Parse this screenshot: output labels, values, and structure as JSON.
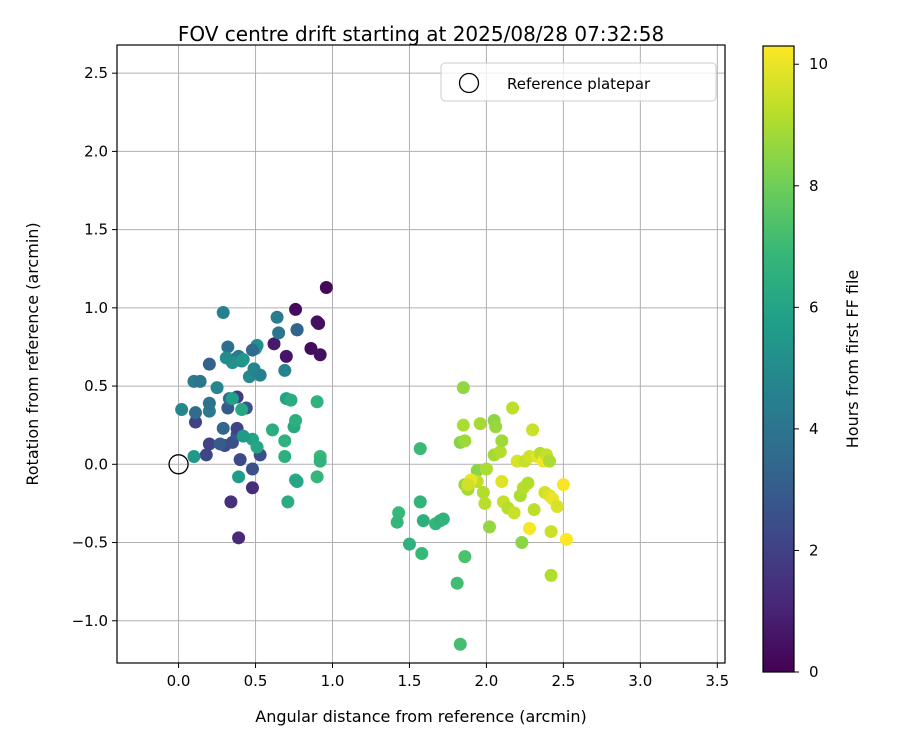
{
  "chart_data": {
    "type": "scatter",
    "title": "FOV centre drift starting at 2025/08/28 07:32:58",
    "xlabel": "Angular distance from reference (arcmin)",
    "ylabel": "Rotation from reference (arcmin)",
    "xlim": [
      -0.4,
      3.55
    ],
    "ylim": [
      -1.27,
      2.68
    ],
    "xticks": [
      0.0,
      0.5,
      1.0,
      1.5,
      2.0,
      2.5,
      3.0,
      3.5
    ],
    "yticks": [
      -1.0,
      -0.5,
      0.0,
      0.5,
      1.0,
      1.5,
      2.0,
      2.5
    ],
    "xtick_labels": [
      "0.0",
      "0.5",
      "1.0",
      "1.5",
      "2.0",
      "2.5",
      "3.0",
      "3.5"
    ],
    "ytick_labels": [
      "−1.0",
      "−0.5",
      "0.0",
      "0.5",
      "1.0",
      "1.5",
      "2.0",
      "2.5"
    ],
    "grid": true,
    "legend": {
      "placement": "top-right",
      "entries": [
        "Reference platepar"
      ]
    },
    "reference_point": {
      "x": 0.0,
      "y": 0.0
    },
    "colorbar": {
      "label": "Hours from first FF file",
      "min": 0,
      "max": 10.3,
      "ticks": [
        0,
        2,
        4,
        6,
        8,
        10
      ],
      "tick_labels": [
        "0",
        "2",
        "4",
        "6",
        "8",
        "10"
      ],
      "colormap": "viridis"
    },
    "points": [
      {
        "x": 0.96,
        "y": 1.13,
        "c": 0.2
      },
      {
        "x": 0.76,
        "y": 0.99,
        "c": 0.3
      },
      {
        "x": 0.9,
        "y": 0.91,
        "c": 0.5
      },
      {
        "x": 0.91,
        "y": 0.9,
        "c": 0.4
      },
      {
        "x": 0.77,
        "y": 0.86,
        "c": 1.0
      },
      {
        "x": 0.62,
        "y": 0.77,
        "c": 0.7
      },
      {
        "x": 0.86,
        "y": 0.74,
        "c": 0.3
      },
      {
        "x": 0.92,
        "y": 0.7,
        "c": 0.4
      },
      {
        "x": 0.7,
        "y": 0.69,
        "c": 0.6
      },
      {
        "x": 0.39,
        "y": -0.47,
        "c": 1.2
      },
      {
        "x": 0.34,
        "y": -0.24,
        "c": 1.4
      },
      {
        "x": 0.48,
        "y": -0.15,
        "c": 1.3
      },
      {
        "x": 0.48,
        "y": -0.03,
        "c": 2.6
      },
      {
        "x": 0.4,
        "y": 0.03,
        "c": 2.3
      },
      {
        "x": 0.53,
        "y": 0.06,
        "c": 2.5
      },
      {
        "x": 0.18,
        "y": 0.06,
        "c": 2.2
      },
      {
        "x": 0.2,
        "y": 0.13,
        "c": 2.0
      },
      {
        "x": 0.3,
        "y": 0.12,
        "c": 2.4
      },
      {
        "x": 0.35,
        "y": 0.14,
        "c": 2.5
      },
      {
        "x": 0.27,
        "y": 0.13,
        "c": 3.0
      },
      {
        "x": 0.38,
        "y": 0.19,
        "c": 2.8
      },
      {
        "x": 0.11,
        "y": 0.27,
        "c": 2.0
      },
      {
        "x": 0.29,
        "y": 0.23,
        "c": 3.4
      },
      {
        "x": 0.38,
        "y": 0.23,
        "c": 2.1
      },
      {
        "x": 0.32,
        "y": 0.36,
        "c": 2.9
      },
      {
        "x": 0.2,
        "y": 0.34,
        "c": 4.2
      },
      {
        "x": 0.11,
        "y": 0.33,
        "c": 3.6
      },
      {
        "x": 0.2,
        "y": 0.39,
        "c": 3.9
      },
      {
        "x": 0.33,
        "y": 0.42,
        "c": 3.7
      },
      {
        "x": 0.38,
        "y": 0.43,
        "c": 1.8
      },
      {
        "x": 0.44,
        "y": 0.36,
        "c": 2.7
      },
      {
        "x": 0.1,
        "y": 0.53,
        "c": 4.3
      },
      {
        "x": 0.14,
        "y": 0.53,
        "c": 4.0
      },
      {
        "x": 0.25,
        "y": 0.49,
        "c": 4.8
      },
      {
        "x": 0.2,
        "y": 0.64,
        "c": 3.2
      },
      {
        "x": 0.32,
        "y": 0.75,
        "c": 3.8
      },
      {
        "x": 0.29,
        "y": 0.97,
        "c": 4.5
      },
      {
        "x": 0.39,
        "y": 0.69,
        "c": 4.1
      },
      {
        "x": 0.41,
        "y": 0.66,
        "c": 4.6
      },
      {
        "x": 0.36,
        "y": 0.67,
        "c": 4.4
      },
      {
        "x": 0.35,
        "y": 0.65,
        "c": 5.2
      },
      {
        "x": 0.31,
        "y": 0.68,
        "c": 5.0
      },
      {
        "x": 0.42,
        "y": 0.67,
        "c": 5.4
      },
      {
        "x": 0.46,
        "y": 0.56,
        "c": 4.9
      },
      {
        "x": 0.49,
        "y": 0.61,
        "c": 4.7
      },
      {
        "x": 0.53,
        "y": 0.57,
        "c": 4.5
      },
      {
        "x": 0.5,
        "y": 0.74,
        "c": 5.3
      },
      {
        "x": 0.51,
        "y": 0.76,
        "c": 5.1
      },
      {
        "x": 0.48,
        "y": 0.73,
        "c": 3.5
      },
      {
        "x": 0.64,
        "y": 0.94,
        "c": 4.3
      },
      {
        "x": 0.65,
        "y": 0.84,
        "c": 4.0
      },
      {
        "x": 0.77,
        "y": 0.86,
        "c": 3.3
      },
      {
        "x": 0.69,
        "y": 0.6,
        "c": 4.6
      },
      {
        "x": 0.02,
        "y": 0.35,
        "c": 4.8
      },
      {
        "x": 0.1,
        "y": 0.05,
        "c": 5.5
      },
      {
        "x": 0.35,
        "y": 0.42,
        "c": 5.8
      },
      {
        "x": 0.41,
        "y": 0.35,
        "c": 6.2
      },
      {
        "x": 0.48,
        "y": 0.16,
        "c": 5.9
      },
      {
        "x": 0.42,
        "y": 0.18,
        "c": 5.6
      },
      {
        "x": 0.51,
        "y": 0.11,
        "c": 6.1
      },
      {
        "x": 0.39,
        "y": -0.08,
        "c": 5.7
      },
      {
        "x": 0.61,
        "y": 0.22,
        "c": 6.4
      },
      {
        "x": 0.69,
        "y": 0.15,
        "c": 6.6
      },
      {
        "x": 0.69,
        "y": 0.05,
        "c": 6.5
      },
      {
        "x": 0.7,
        "y": 0.42,
        "c": 6.0
      },
      {
        "x": 0.73,
        "y": 0.41,
        "c": 6.3
      },
      {
        "x": 0.75,
        "y": 0.24,
        "c": 6.2
      },
      {
        "x": 0.76,
        "y": 0.28,
        "c": 6.5
      },
      {
        "x": 0.71,
        "y": -0.24,
        "c": 6.4
      },
      {
        "x": 0.76,
        "y": -0.1,
        "c": 6.3
      },
      {
        "x": 0.9,
        "y": -0.08,
        "c": 6.8
      },
      {
        "x": 0.9,
        "y": 0.4,
        "c": 6.6
      },
      {
        "x": 0.92,
        "y": 0.05,
        "c": 6.9
      },
      {
        "x": 0.92,
        "y": 0.02,
        "c": 6.7
      },
      {
        "x": 0.77,
        "y": -0.11,
        "c": 6.1
      },
      {
        "x": 1.43,
        "y": -0.31,
        "c": 6.9
      },
      {
        "x": 1.42,
        "y": -0.37,
        "c": 6.8
      },
      {
        "x": 1.5,
        "y": -0.51,
        "c": 6.6
      },
      {
        "x": 1.57,
        "y": -0.24,
        "c": 6.7
      },
      {
        "x": 1.58,
        "y": -0.57,
        "c": 6.9
      },
      {
        "x": 1.59,
        "y": -0.36,
        "c": 6.5
      },
      {
        "x": 1.57,
        "y": 0.1,
        "c": 7.0
      },
      {
        "x": 1.67,
        "y": -0.38,
        "c": 6.8
      },
      {
        "x": 1.7,
        "y": -0.36,
        "c": 6.6
      },
      {
        "x": 1.72,
        "y": -0.35,
        "c": 6.7
      },
      {
        "x": 1.81,
        "y": -0.76,
        "c": 7.1
      },
      {
        "x": 1.86,
        "y": -0.59,
        "c": 7.3
      },
      {
        "x": 1.83,
        "y": -1.15,
        "c": 7.2
      },
      {
        "x": 1.85,
        "y": 0.49,
        "c": 8.6
      },
      {
        "x": 1.83,
        "y": 0.14,
        "c": 8.4
      },
      {
        "x": 1.85,
        "y": 0.25,
        "c": 9.0
      },
      {
        "x": 1.86,
        "y": 0.15,
        "c": 8.8
      },
      {
        "x": 1.86,
        "y": -0.13,
        "c": 8.7
      },
      {
        "x": 1.88,
        "y": -0.16,
        "c": 8.9
      },
      {
        "x": 1.94,
        "y": -0.04,
        "c": 8.5
      },
      {
        "x": 1.94,
        "y": -0.11,
        "c": 9.3
      },
      {
        "x": 1.96,
        "y": 0.26,
        "c": 8.9
      },
      {
        "x": 1.98,
        "y": -0.18,
        "c": 9.1
      },
      {
        "x": 1.99,
        "y": -0.25,
        "c": 9.2
      },
      {
        "x": 2.0,
        "y": -0.03,
        "c": 9.0
      },
      {
        "x": 2.02,
        "y": -0.4,
        "c": 8.6
      },
      {
        "x": 2.05,
        "y": 0.28,
        "c": 8.5
      },
      {
        "x": 2.06,
        "y": 0.24,
        "c": 8.7
      },
      {
        "x": 2.05,
        "y": 0.06,
        "c": 8.9
      },
      {
        "x": 2.09,
        "y": 0.08,
        "c": 9.1
      },
      {
        "x": 2.1,
        "y": 0.15,
        "c": 8.8
      },
      {
        "x": 2.1,
        "y": -0.11,
        "c": 9.8
      },
      {
        "x": 2.11,
        "y": -0.24,
        "c": 9.4
      },
      {
        "x": 2.14,
        "y": -0.28,
        "c": 9.2
      },
      {
        "x": 2.17,
        "y": 0.36,
        "c": 9.3
      },
      {
        "x": 2.18,
        "y": -0.31,
        "c": 9.5
      },
      {
        "x": 2.2,
        "y": 0.02,
        "c": 9.7
      },
      {
        "x": 2.22,
        "y": -0.2,
        "c": 9.0
      },
      {
        "x": 2.23,
        "y": -0.5,
        "c": 8.5
      },
      {
        "x": 2.24,
        "y": -0.15,
        "c": 9.2
      },
      {
        "x": 2.25,
        "y": 0.02,
        "c": 9.4
      },
      {
        "x": 2.27,
        "y": -0.12,
        "c": 9.1
      },
      {
        "x": 2.28,
        "y": 0.05,
        "c": 9.6
      },
      {
        "x": 2.28,
        "y": -0.41,
        "c": 10.2
      },
      {
        "x": 2.3,
        "y": 0.22,
        "c": 9.5
      },
      {
        "x": 2.31,
        "y": -0.29,
        "c": 9.3
      },
      {
        "x": 2.33,
        "y": 0.05,
        "c": 9.9
      },
      {
        "x": 2.35,
        "y": 0.07,
        "c": 9.2
      },
      {
        "x": 2.37,
        "y": 0.02,
        "c": 10.1
      },
      {
        "x": 2.38,
        "y": -0.18,
        "c": 9.6
      },
      {
        "x": 2.39,
        "y": 0.06,
        "c": 9.4
      },
      {
        "x": 2.41,
        "y": 0.02,
        "c": 9.0
      },
      {
        "x": 2.41,
        "y": -0.2,
        "c": 9.8
      },
      {
        "x": 2.42,
        "y": -0.43,
        "c": 9.5
      },
      {
        "x": 2.43,
        "y": -0.22,
        "c": 10.0
      },
      {
        "x": 2.42,
        "y": -0.71,
        "c": 9.1
      },
      {
        "x": 2.46,
        "y": -0.27,
        "c": 9.7
      },
      {
        "x": 2.5,
        "y": -0.13,
        "c": 10.2
      },
      {
        "x": 2.52,
        "y": -0.48,
        "c": 10.3
      },
      {
        "x": 1.9,
        "y": -0.1,
        "c": 10.0
      },
      {
        "x": 1.88,
        "y": -0.13,
        "c": 9.6
      }
    ]
  }
}
